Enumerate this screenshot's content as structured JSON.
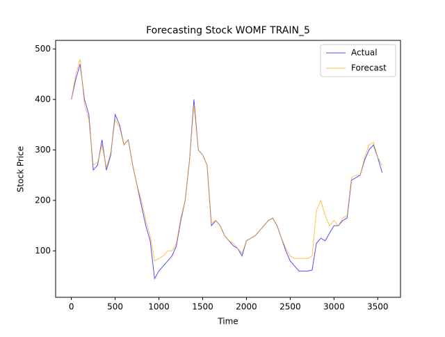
{
  "chart_data": {
    "type": "line",
    "title": "Forecasting Stock WOMF TRAIN_5",
    "x_label": "Time",
    "y_label": "Stock Price",
    "x": [
      0,
      50,
      100,
      150,
      200,
      250,
      300,
      350,
      400,
      450,
      500,
      550,
      600,
      650,
      700,
      750,
      800,
      850,
      900,
      950,
      1000,
      1050,
      1100,
      1150,
      1200,
      1250,
      1300,
      1350,
      1400,
      1450,
      1500,
      1550,
      1600,
      1650,
      1700,
      1750,
      1800,
      1850,
      1900,
      1950,
      2000,
      2050,
      2100,
      2150,
      2200,
      2250,
      2300,
      2350,
      2400,
      2450,
      2500,
      2550,
      2600,
      2650,
      2700,
      2750,
      2800,
      2850,
      2900,
      2950,
      3000,
      3050,
      3100,
      3150,
      3200,
      3250,
      3300,
      3350,
      3400,
      3450,
      3500,
      3550
    ],
    "series": [
      {
        "name": "Actual",
        "color": "#0000ff",
        "values": [
          400,
          440,
          470,
          400,
          370,
          260,
          270,
          320,
          260,
          290,
          370,
          350,
          310,
          320,
          270,
          230,
          190,
          150,
          120,
          45,
          60,
          70,
          80,
          90,
          110,
          160,
          200,
          280,
          400,
          300,
          290,
          270,
          150,
          160,
          150,
          130,
          120,
          110,
          105,
          90,
          120,
          125,
          130,
          140,
          150,
          160,
          165,
          150,
          125,
          100,
          80,
          70,
          60,
          60,
          60,
          62,
          115,
          125,
          120,
          135,
          150,
          150,
          160,
          165,
          240,
          245,
          250,
          280,
          300,
          310,
          285,
          255
        ]
      },
      {
        "name": "Forecast",
        "color": "#ffa500",
        "values": [
          400,
          450,
          480,
          390,
          360,
          270,
          275,
          310,
          265,
          295,
          360,
          345,
          310,
          320,
          270,
          230,
          200,
          160,
          130,
          80,
          85,
          90,
          100,
          100,
          115,
          165,
          200,
          280,
          390,
          300,
          290,
          270,
          155,
          160,
          150,
          130,
          120,
          115,
          105,
          95,
          120,
          125,
          130,
          140,
          150,
          160,
          165,
          150,
          125,
          105,
          90,
          85,
          85,
          85,
          85,
          90,
          180,
          200,
          170,
          150,
          160,
          150,
          165,
          170,
          245,
          250,
          250,
          285,
          310,
          315,
          285,
          270
        ]
      }
    ],
    "xlim": [
      -180,
      3760
    ],
    "ylim": [
      8,
      517
    ],
    "xticks": [
      0,
      500,
      1000,
      1500,
      2000,
      2500,
      3000,
      3500
    ],
    "yticks": [
      100,
      200,
      300,
      400,
      500
    ],
    "legend": "upper right"
  }
}
